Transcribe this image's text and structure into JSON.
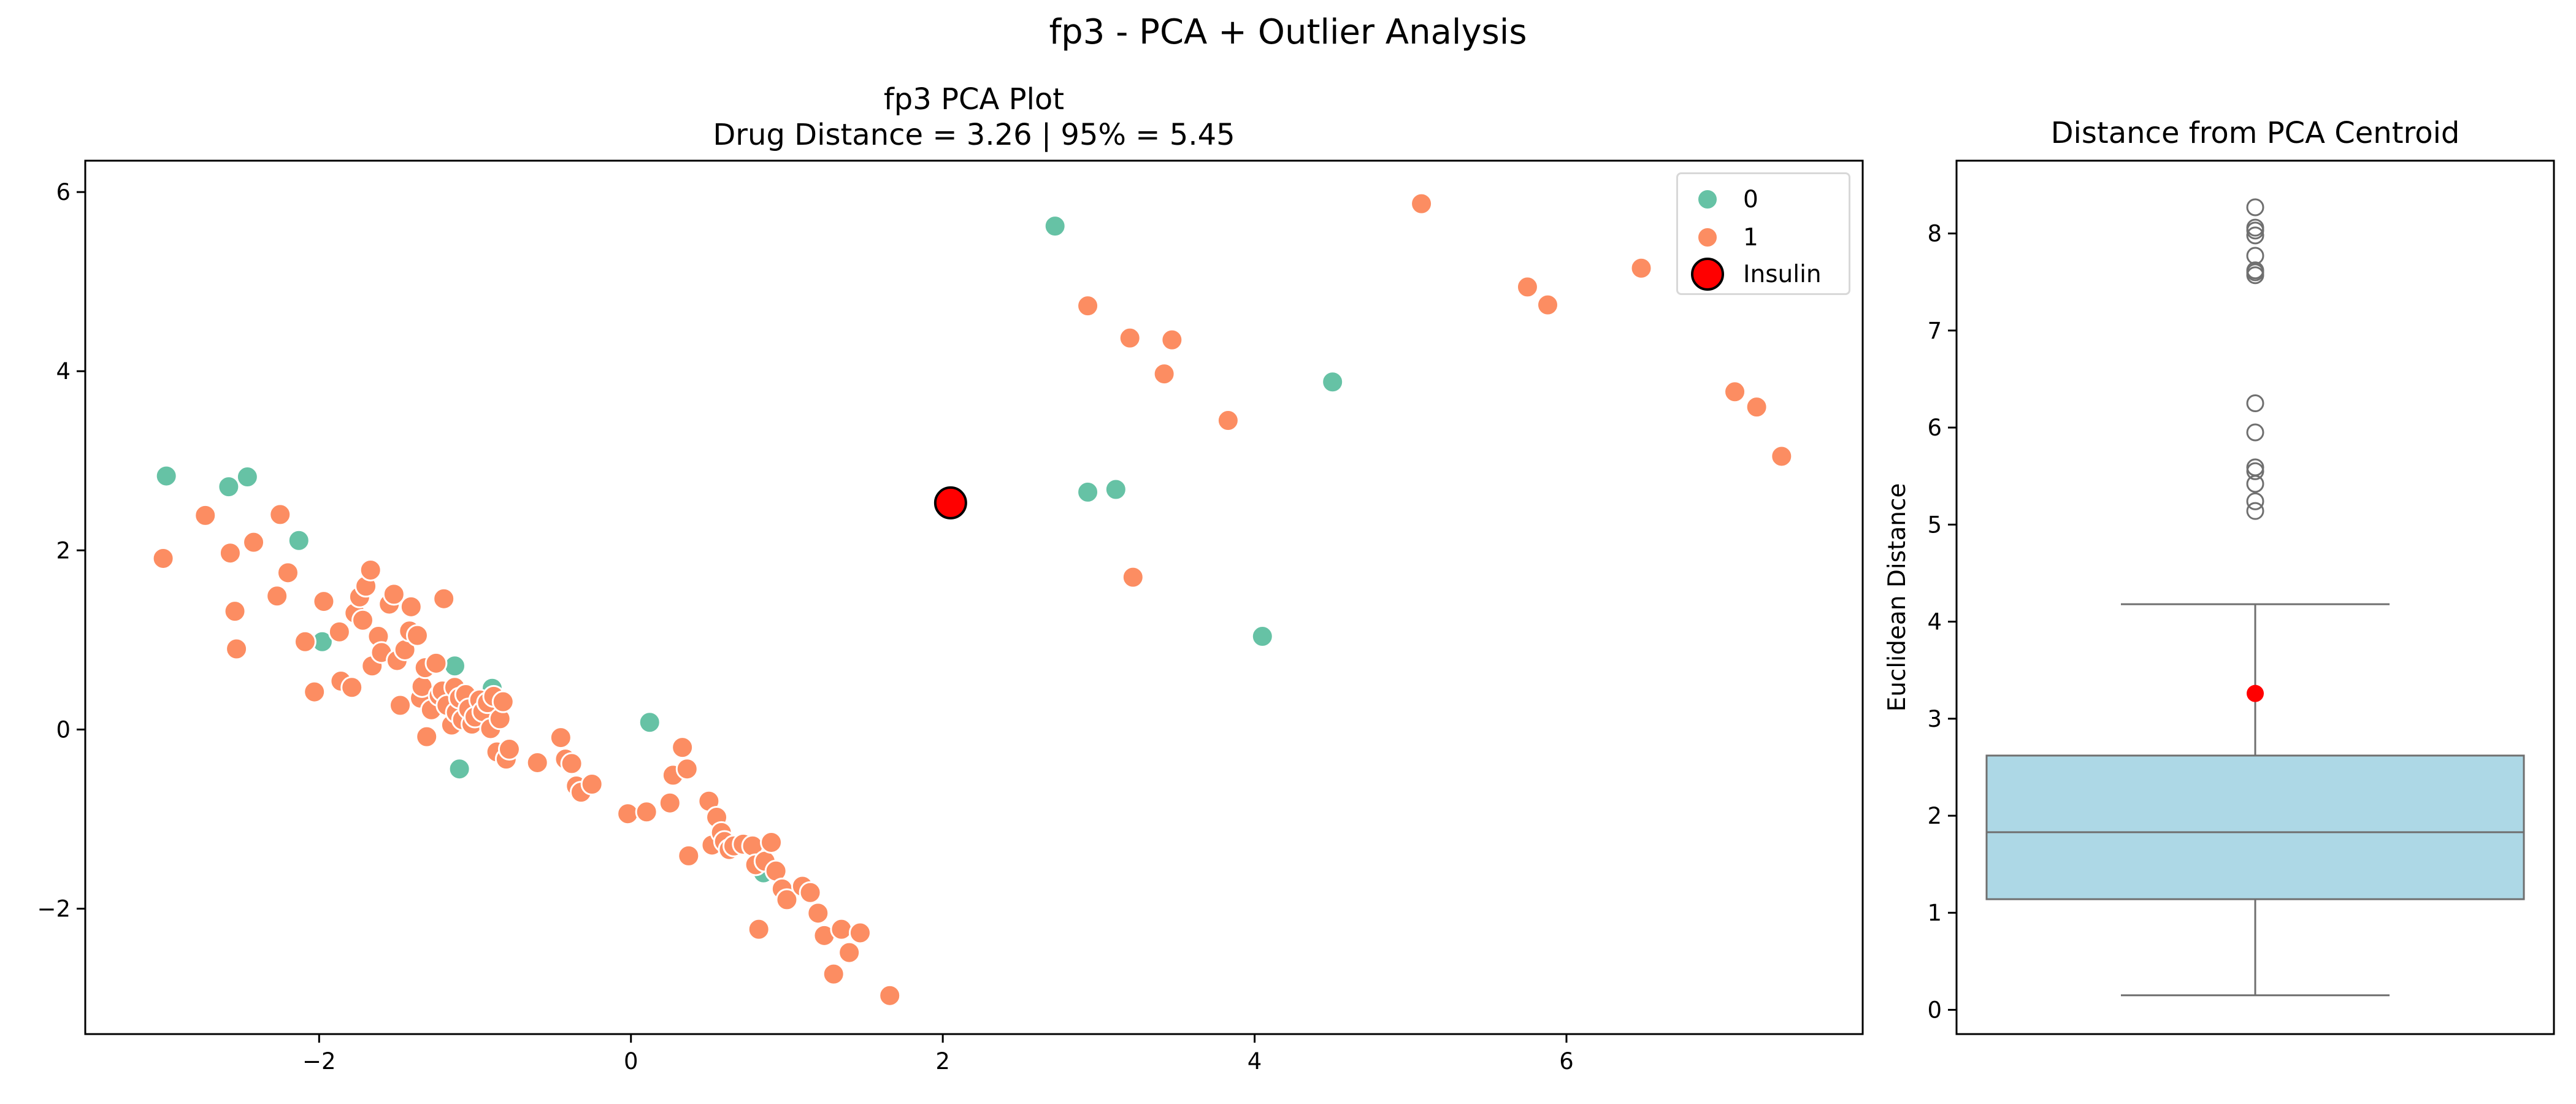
{
  "figure": {
    "suptitle": "fp3 - PCA + Outlier Analysis"
  },
  "chart_data": [
    {
      "type": "scatter",
      "title": "fp3 PCA Plot",
      "subtitle": "Drug Distance = 3.26 | 95% = 5.45",
      "xlabel": "",
      "ylabel": "",
      "xlim": [
        -3.5,
        7.9
      ],
      "ylim": [
        -3.4,
        6.35
      ],
      "x_ticks": [
        -2,
        0,
        2,
        4,
        6
      ],
      "y_ticks": [
        -2,
        0,
        2,
        4,
        6
      ],
      "x_tick_labels": [
        "−2",
        "0",
        "2",
        "4",
        "6"
      ],
      "y_tick_labels": [
        "−2",
        "0",
        "2",
        "4",
        "6"
      ],
      "grid": false,
      "legend_placement": "top-right",
      "series": [
        {
          "name": "0",
          "color": "#66c2a5",
          "points": [
            [
              -2.98,
              2.83
            ],
            [
              -2.58,
              2.71
            ],
            [
              -2.46,
              2.82
            ],
            [
              -2.13,
              2.11
            ],
            [
              -1.98,
              0.98
            ],
            [
              -1.13,
              0.71
            ],
            [
              -1.1,
              -0.44
            ],
            [
              -0.89,
              0.46
            ],
            [
              -0.98,
              0.17
            ],
            [
              0.12,
              0.08
            ],
            [
              0.85,
              -1.6
            ],
            [
              2.72,
              5.62
            ],
            [
              2.93,
              2.65
            ],
            [
              3.11,
              2.68
            ],
            [
              4.05,
              1.04
            ],
            [
              4.5,
              3.88
            ]
          ]
        },
        {
          "name": "1",
          "color": "#fc8d62",
          "points": [
            [
              -3.0,
              1.91
            ],
            [
              -2.73,
              2.39
            ],
            [
              -2.57,
              1.97
            ],
            [
              -2.54,
              1.32
            ],
            [
              -2.53,
              0.9
            ],
            [
              -2.42,
              2.09
            ],
            [
              -2.27,
              1.49
            ],
            [
              -2.25,
              2.4
            ],
            [
              -2.2,
              1.75
            ],
            [
              -2.09,
              0.98
            ],
            [
              -2.03,
              0.42
            ],
            [
              -1.97,
              1.43
            ],
            [
              -1.87,
              1.09
            ],
            [
              -1.86,
              0.54
            ],
            [
              -1.79,
              0.47
            ],
            [
              -1.77,
              1.3
            ],
            [
              -1.74,
              1.48
            ],
            [
              -1.72,
              1.22
            ],
            [
              -1.7,
              1.6
            ],
            [
              -1.67,
              1.78
            ],
            [
              -1.66,
              0.71
            ],
            [
              -1.62,
              1.04
            ],
            [
              -1.6,
              0.86
            ],
            [
              -1.55,
              1.4
            ],
            [
              -1.52,
              1.51
            ],
            [
              -1.5,
              0.77
            ],
            [
              -1.48,
              0.27
            ],
            [
              -1.45,
              0.89
            ],
            [
              -1.42,
              1.1
            ],
            [
              -1.41,
              1.37
            ],
            [
              -1.37,
              1.05
            ],
            [
              -1.35,
              0.35
            ],
            [
              -1.34,
              0.48
            ],
            [
              -1.32,
              0.69
            ],
            [
              -1.31,
              -0.08
            ],
            [
              -1.28,
              0.22
            ],
            [
              -1.25,
              0.74
            ],
            [
              -1.23,
              0.38
            ],
            [
              -1.21,
              0.43
            ],
            [
              -1.2,
              1.46
            ],
            [
              -1.18,
              0.27
            ],
            [
              -1.15,
              0.05
            ],
            [
              -1.13,
              0.47
            ],
            [
              -1.12,
              0.19
            ],
            [
              -1.1,
              0.35
            ],
            [
              -1.08,
              0.11
            ],
            [
              -1.06,
              0.39
            ],
            [
              -1.04,
              0.23
            ],
            [
              -1.02,
              0.06
            ],
            [
              -1.0,
              0.14
            ],
            [
              -0.97,
              0.33
            ],
            [
              -0.95,
              0.2
            ],
            [
              -0.92,
              0.3
            ],
            [
              -0.9,
              0.01
            ],
            [
              -0.88,
              0.37
            ],
            [
              -0.86,
              -0.25
            ],
            [
              -0.84,
              0.12
            ],
            [
              -0.82,
              0.31
            ],
            [
              -0.8,
              -0.33
            ],
            [
              -0.78,
              -0.22
            ],
            [
              -0.6,
              -0.37
            ],
            [
              -0.45,
              -0.09
            ],
            [
              -0.42,
              -0.33
            ],
            [
              -0.38,
              -0.38
            ],
            [
              -0.35,
              -0.63
            ],
            [
              -0.32,
              -0.7
            ],
            [
              -0.25,
              -0.61
            ],
            [
              -0.02,
              -0.94
            ],
            [
              0.1,
              -0.92
            ],
            [
              0.25,
              -0.82
            ],
            [
              0.27,
              -0.51
            ],
            [
              0.33,
              -0.2
            ],
            [
              0.36,
              -0.44
            ],
            [
              0.37,
              -1.41
            ],
            [
              0.5,
              -0.8
            ],
            [
              0.52,
              -1.29
            ],
            [
              0.55,
              -0.98
            ],
            [
              0.58,
              -1.15
            ],
            [
              0.6,
              -1.25
            ],
            [
              0.63,
              -1.34
            ],
            [
              0.66,
              -1.3
            ],
            [
              0.72,
              -1.28
            ],
            [
              0.78,
              -1.3
            ],
            [
              0.8,
              -1.51
            ],
            [
              0.82,
              -2.23
            ],
            [
              0.86,
              -1.47
            ],
            [
              0.9,
              -1.26
            ],
            [
              0.93,
              -1.58
            ],
            [
              0.97,
              -1.78
            ],
            [
              1.0,
              -1.9
            ],
            [
              1.1,
              -1.75
            ],
            [
              1.15,
              -1.82
            ],
            [
              1.2,
              -2.05
            ],
            [
              1.24,
              -2.3
            ],
            [
              1.3,
              -2.73
            ],
            [
              1.35,
              -2.23
            ],
            [
              1.4,
              -2.49
            ],
            [
              1.47,
              -2.27
            ],
            [
              1.66,
              -2.97
            ],
            [
              2.93,
              4.73
            ],
            [
              3.2,
              4.37
            ],
            [
              3.22,
              1.7
            ],
            [
              3.42,
              3.97
            ],
            [
              3.47,
              4.35
            ],
            [
              3.83,
              3.45
            ],
            [
              5.07,
              5.87
            ],
            [
              5.75,
              4.94
            ],
            [
              5.88,
              4.74
            ],
            [
              6.48,
              5.15
            ],
            [
              7.08,
              3.77
            ],
            [
              7.22,
              3.6
            ],
            [
              7.38,
              3.05
            ]
          ]
        },
        {
          "name": "Insulin",
          "color": "#ff0000",
          "points": [
            [
              2.05,
              2.53
            ]
          ]
        }
      ]
    },
    {
      "type": "box",
      "title": "Distance from PCA Centroid",
      "xlabel": "",
      "ylabel": "Euclidean Distance",
      "ylim": [
        -0.25,
        8.75
      ],
      "y_ticks": [
        0,
        1,
        2,
        3,
        4,
        5,
        6,
        7,
        8
      ],
      "y_tick_labels": [
        "0",
        "1",
        "2",
        "3",
        "4",
        "5",
        "6",
        "7",
        "8"
      ],
      "grid": false,
      "box": {
        "color": "#add8e6",
        "whisker_low": 0.15,
        "q1": 1.14,
        "median": 1.83,
        "q3": 2.62,
        "whisker_high": 4.18,
        "outliers": [
          5.14,
          5.24,
          5.42,
          5.55,
          5.59,
          5.95,
          6.25,
          7.57,
          7.6,
          7.62,
          7.77,
          7.98,
          8.03,
          8.06,
          8.27
        ]
      },
      "highlight": {
        "label": "Insulin",
        "value": 3.26,
        "color": "#ff0000"
      }
    }
  ]
}
